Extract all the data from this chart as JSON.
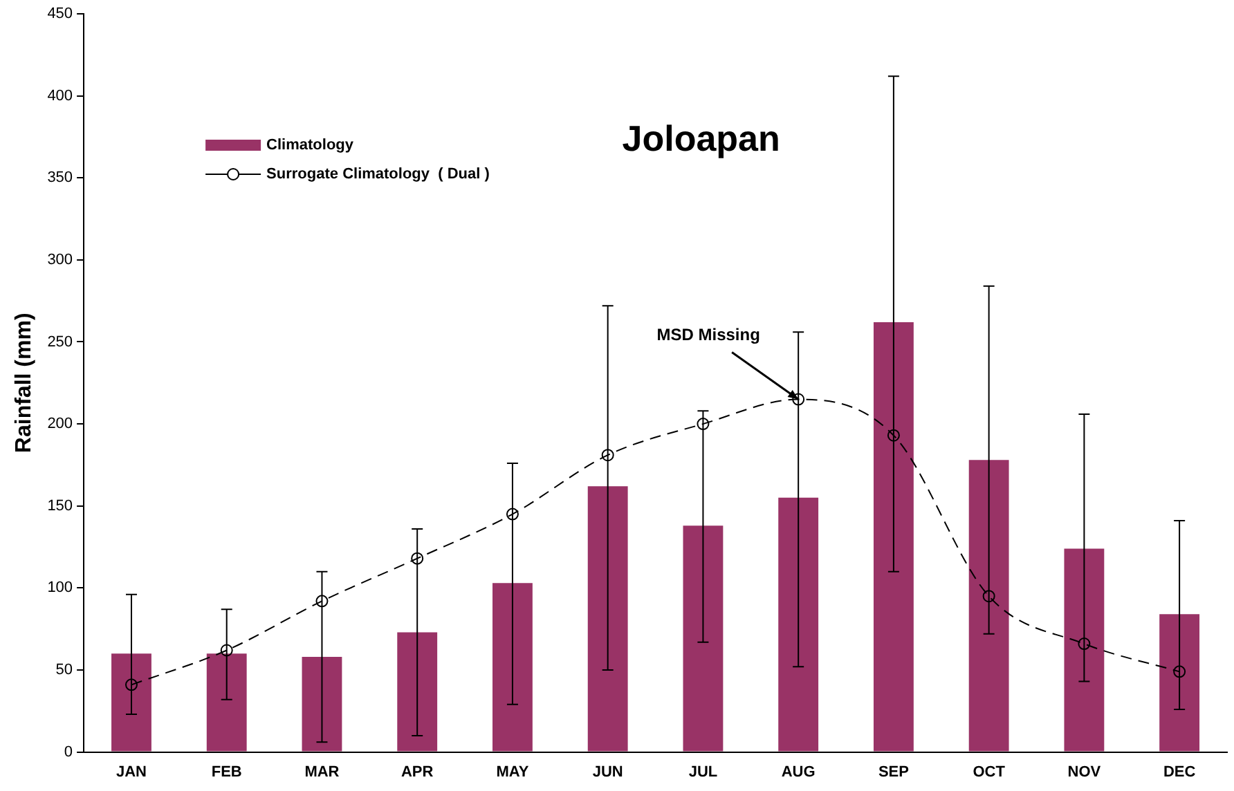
{
  "chart_data": {
    "type": "bar",
    "title": "Joloapan",
    "ylabel": "Rainfall (mm)",
    "categories": [
      "JAN",
      "FEB",
      "MAR",
      "APR",
      "MAY",
      "JUN",
      "JUL",
      "AUG",
      "SEP",
      "OCT",
      "NOV",
      "DEC"
    ],
    "series": [
      {
        "name": "Climatology",
        "color": "#993366",
        "values": [
          60,
          60,
          58,
          73,
          103,
          162,
          138,
          155,
          262,
          178,
          124,
          84
        ],
        "errors": [
          [
            23,
            96
          ],
          [
            32,
            87
          ],
          [
            6,
            110
          ],
          [
            10,
            136
          ],
          [
            29,
            176
          ],
          [
            50,
            272
          ],
          [
            67,
            208
          ],
          [
            52,
            256
          ],
          [
            110,
            412
          ],
          [
            72,
            284
          ],
          [
            43,
            206
          ],
          [
            26,
            141
          ]
        ]
      },
      {
        "name": "Surrogate Climatology  ( Dual )",
        "type": "line",
        "color": "#000000",
        "marker": "circle",
        "line_style": "dashed",
        "values": [
          41,
          62,
          92,
          118,
          145,
          181,
          200,
          215,
          193,
          95,
          66,
          49
        ]
      }
    ],
    "ylim": [
      0,
      450
    ],
    "yticks": [
      0,
      50,
      100,
      150,
      200,
      250,
      300,
      350,
      400,
      450
    ],
    "grid": false,
    "legend": "top left",
    "annotations": [
      {
        "text": "MSD Missing",
        "x": "AUG",
        "y": 215
      }
    ]
  }
}
